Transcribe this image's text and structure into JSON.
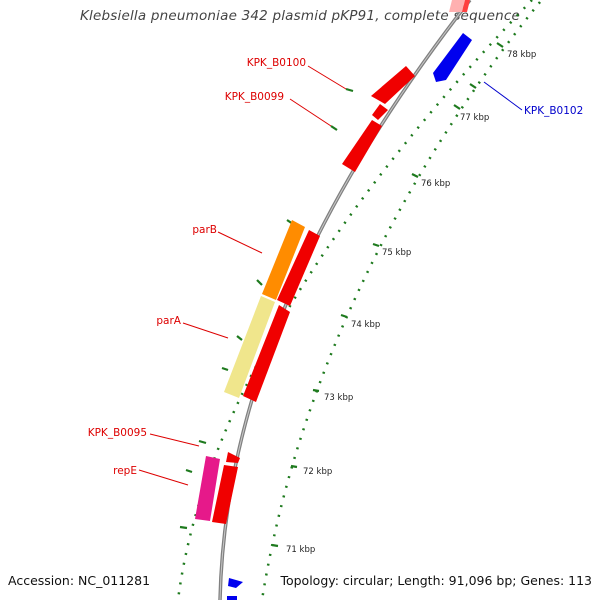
{
  "title": "Klebsiella pneumoniae 342 plasmid pKP91, complete sequence",
  "accession_label": "Accession: NC_011281",
  "topology_label": "Topology: circular; Length: 91,096 bp; Genes: 113",
  "colors": {
    "backbone": "#808080",
    "dot_track": "#1e7a1e",
    "forward_gene": "#f00000",
    "reverse_gene": "#0000ee",
    "parB": "#ff8c00",
    "parA": "#f0e68c",
    "repE": "#e6198a",
    "faded_gene": "#ffb0b0"
  },
  "backbone_ticks": [
    {
      "kbp": 71,
      "label": "71 kbp"
    },
    {
      "kbp": 72,
      "label": "72 kbp"
    },
    {
      "kbp": 73,
      "label": "73 kbp"
    },
    {
      "kbp": 74,
      "label": "74 kbp"
    },
    {
      "kbp": 75,
      "label": "75 kbp"
    },
    {
      "kbp": 76,
      "label": "76 kbp"
    },
    {
      "kbp": 77,
      "label": "77 kbp"
    },
    {
      "kbp": 78,
      "label": "78 kbp"
    }
  ],
  "gene_labels": [
    {
      "name": "KPK_B0100",
      "color": "#dd0000"
    },
    {
      "name": "KPK_B0099",
      "color": "#dd0000"
    },
    {
      "name": "parB",
      "color": "#dd0000"
    },
    {
      "name": "parA",
      "color": "#dd0000"
    },
    {
      "name": "KPK_B0095",
      "color": "#dd0000"
    },
    {
      "name": "repE",
      "color": "#dd0000"
    },
    {
      "name": "KPK_B0102",
      "color": "#0000cc"
    }
  ]
}
